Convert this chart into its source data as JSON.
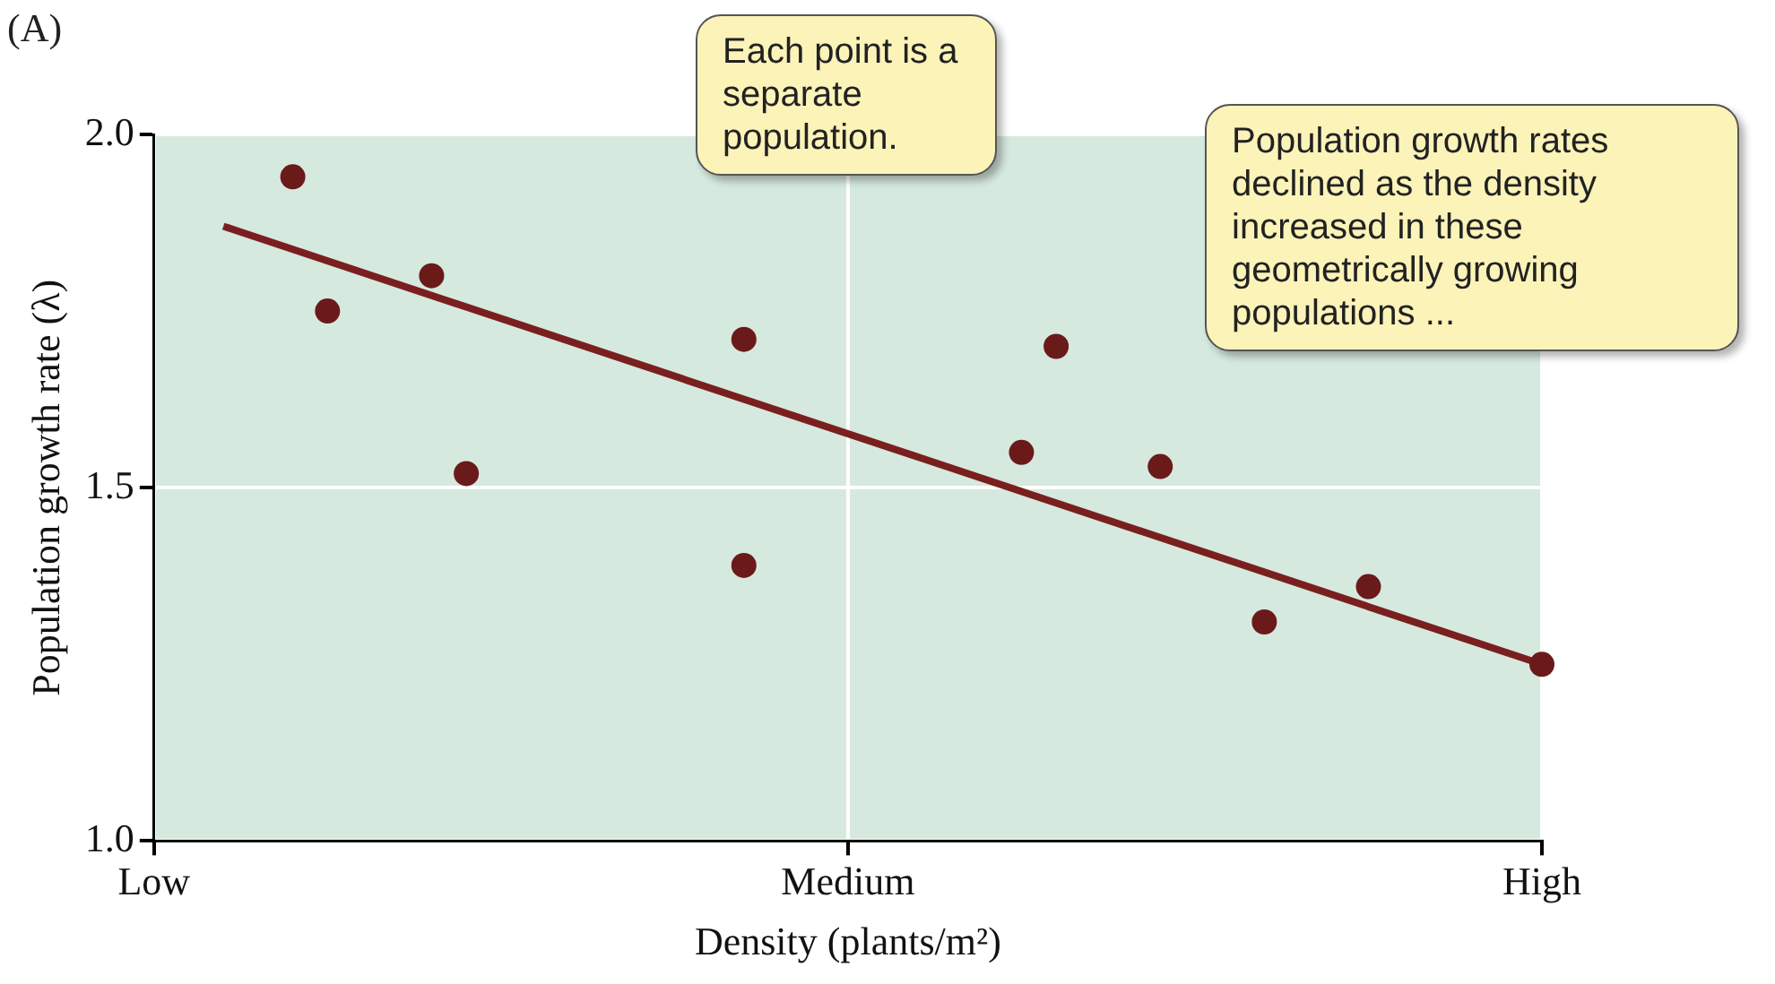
{
  "chart_data": {
    "type": "scatter",
    "xlabel": "Density (plants/m²)",
    "ylabel": "Population growth rate (λ)",
    "categories": [
      "Low",
      null,
      null,
      null,
      null,
      null,
      null,
      null,
      null,
      null,
      null,
      null,
      null,
      null,
      null,
      null,
      null,
      null,
      null,
      null,
      "Medium",
      null,
      null,
      null,
      null,
      null,
      null,
      null,
      null,
      null,
      null,
      null,
      null,
      null,
      null,
      null,
      null,
      null,
      null,
      null,
      "High"
    ],
    "ylim": [
      1,
      2
    ],
    "yticks": [
      {
        "value": 1,
        "label": "1.0"
      },
      {
        "value": 1.5,
        "label": "1.5"
      },
      {
        "value": 2,
        "label": "2.0"
      }
    ],
    "grid": true,
    "legend": false,
    "marker": "circle",
    "series": [
      {
        "type": "scatter",
        "color": "#6b1a1a",
        "values": [
          null,
          null,
          null,
          null,
          1.94,
          1.75,
          null,
          null,
          1.8,
          1.52,
          null,
          null,
          null,
          null,
          null,
          null,
          null,
          1.71,
          null,
          null,
          null,
          null,
          null,
          null,
          null,
          1.55,
          1.7,
          null,
          null,
          1.53,
          null,
          null,
          1.31,
          null,
          null,
          1.36,
          null,
          null,
          null,
          null,
          1.25
        ]
      },
      {
        "type": "scatter",
        "color": "#6b1a1a",
        "values": [
          null,
          null,
          null,
          null,
          null,
          null,
          null,
          null,
          null,
          null,
          null,
          null,
          null,
          null,
          null,
          null,
          null,
          1.39,
          null,
          null,
          null,
          null,
          null,
          null,
          null,
          null,
          null,
          null,
          null,
          null,
          null,
          null,
          null,
          null,
          null,
          null,
          null,
          null,
          null,
          null,
          null
        ]
      },
      {
        "type": "line",
        "color": "#7a1f1f",
        "marker": "none",
        "line_style": "solid",
        "values": [
          null,
          null,
          1.87,
          null,
          null,
          null,
          null,
          null,
          null,
          null,
          null,
          null,
          null,
          null,
          null,
          null,
          null,
          null,
          null,
          null,
          null,
          null,
          null,
          null,
          null,
          null,
          null,
          null,
          null,
          null,
          null,
          null,
          null,
          null,
          null,
          null,
          null,
          null,
          null,
          null,
          1.25
        ]
      }
    ],
    "annotations": [
      "(A)",
      "Each point is a separate population.",
      "Population growth rates declined as the density increased in these geometrically growing populations ..."
    ]
  }
}
